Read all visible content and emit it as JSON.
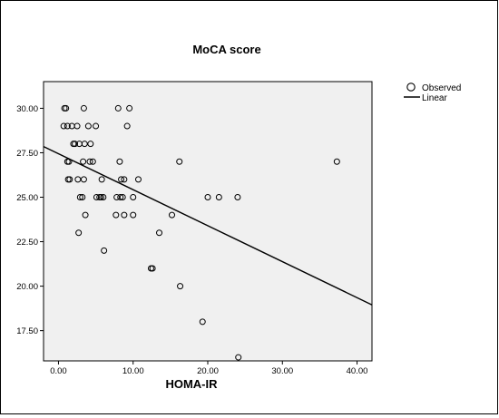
{
  "chart_data": {
    "type": "scatter",
    "title": "MoCA score",
    "xlabel": "HOMA-IR",
    "ylabel": "",
    "xlim": [
      -2,
      42
    ],
    "ylim": [
      15.8,
      31.5
    ],
    "x_ticks": [
      0,
      10,
      20,
      30,
      40
    ],
    "x_tick_labels": [
      "0.00",
      "10.00",
      "20.00",
      "30.00",
      "40.00"
    ],
    "y_ticks": [
      17.5,
      20,
      22.5,
      25,
      27.5,
      30
    ],
    "y_tick_labels": [
      "17.50",
      "20.00",
      "22.50",
      "25.00",
      "27.50",
      "30.00"
    ],
    "grid": false,
    "legend_position": "right",
    "legend": [
      {
        "label": "Observed",
        "marker": "circle"
      },
      {
        "label": "Linear",
        "marker": "line"
      }
    ],
    "colors": {
      "plot_background": "#f0f0f0",
      "marker_stroke": "#000000",
      "line": "#000000"
    },
    "series": [
      {
        "name": "Observed",
        "type": "scatter",
        "points": [
          [
            0.8,
            30
          ],
          [
            1.0,
            30
          ],
          [
            3.4,
            30
          ],
          [
            8.0,
            30
          ],
          [
            9.5,
            30
          ],
          [
            0.7,
            29
          ],
          [
            1.2,
            29
          ],
          [
            1.8,
            29
          ],
          [
            2.5,
            29
          ],
          [
            4.0,
            29
          ],
          [
            5.0,
            29
          ],
          [
            9.2,
            29
          ],
          [
            2.0,
            28
          ],
          [
            2.2,
            28
          ],
          [
            2.8,
            28
          ],
          [
            3.5,
            28
          ],
          [
            4.3,
            28
          ],
          [
            1.2,
            27
          ],
          [
            1.4,
            27
          ],
          [
            3.3,
            27
          ],
          [
            4.2,
            27
          ],
          [
            4.6,
            27
          ],
          [
            8.2,
            27
          ],
          [
            16.2,
            27
          ],
          [
            37.3,
            27
          ],
          [
            1.3,
            26
          ],
          [
            1.5,
            26
          ],
          [
            2.6,
            26
          ],
          [
            3.4,
            26
          ],
          [
            5.8,
            26
          ],
          [
            8.4,
            26
          ],
          [
            8.8,
            26
          ],
          [
            10.7,
            26
          ],
          [
            2.9,
            25
          ],
          [
            3.2,
            25
          ],
          [
            5.1,
            25
          ],
          [
            5.5,
            25
          ],
          [
            5.7,
            25
          ],
          [
            6.0,
            25
          ],
          [
            7.8,
            25
          ],
          [
            8.3,
            25
          ],
          [
            8.6,
            25
          ],
          [
            10.0,
            25
          ],
          [
            20.0,
            25
          ],
          [
            21.5,
            25
          ],
          [
            24.0,
            25
          ],
          [
            3.6,
            24
          ],
          [
            7.7,
            24
          ],
          [
            8.8,
            24
          ],
          [
            10.0,
            24
          ],
          [
            15.2,
            24
          ],
          [
            2.7,
            23
          ],
          [
            13.5,
            23
          ],
          [
            6.1,
            22
          ],
          [
            12.4,
            21
          ],
          [
            12.6,
            21
          ],
          [
            16.3,
            20
          ],
          [
            19.3,
            18
          ],
          [
            24.1,
            16
          ]
        ]
      },
      {
        "name": "Linear",
        "type": "line",
        "points": [
          [
            -2,
            27.85
          ],
          [
            42,
            18.95
          ]
        ]
      }
    ]
  }
}
